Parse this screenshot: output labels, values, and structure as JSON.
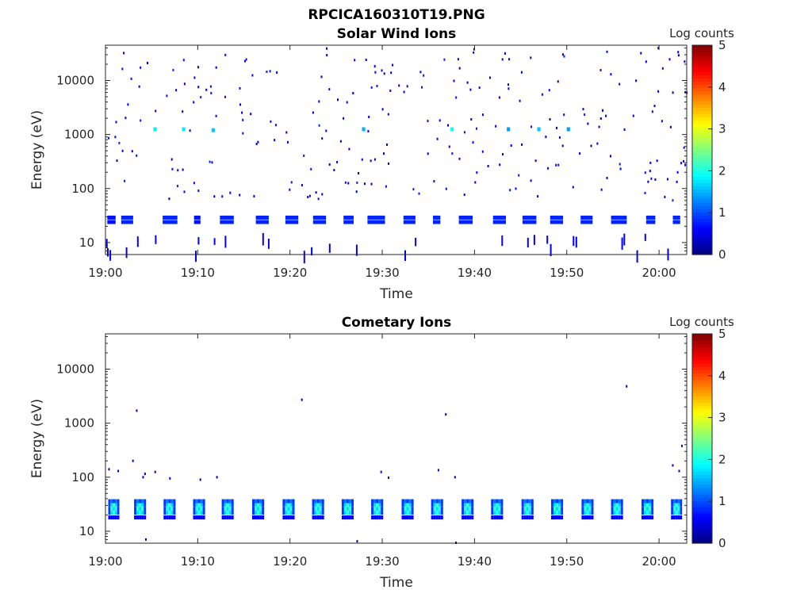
{
  "figure": {
    "title": "RPCICA160310T19.PNG"
  },
  "chart_data": [
    {
      "type": "heatmap",
      "title": "Solar Wind Ions",
      "xlabel": "Time",
      "ylabel": "Energy (eV)",
      "x_ticks": [
        "19:00",
        "19:10",
        "19:20",
        "19:30",
        "19:40",
        "19:50",
        "20:00"
      ],
      "x_range_minutes": [
        0,
        63
      ],
      "y_ticks": [
        "10",
        "100",
        "1000",
        "10000"
      ],
      "y_scale": "log",
      "y_range": [
        6,
        45000
      ],
      "colorbar": {
        "label": "Log counts",
        "range": [
          0,
          5
        ],
        "ticks": [
          "0",
          "1",
          "2",
          "3",
          "4",
          "5"
        ],
        "colormap": "jet"
      },
      "band_dashes": [
        {
          "t": 0.2,
          "dt": 0.9,
          "logc": 0.7
        },
        {
          "t": 1.7,
          "dt": 1.3,
          "logc": 0.8
        },
        {
          "t": 6.2,
          "dt": 1.6,
          "logc": 0.8
        },
        {
          "t": 9.6,
          "dt": 0.7,
          "logc": 0.7
        },
        {
          "t": 12.4,
          "dt": 1.5,
          "logc": 0.8
        },
        {
          "t": 16.3,
          "dt": 1.4,
          "logc": 0.8
        },
        {
          "t": 19.5,
          "dt": 1.4,
          "logc": 0.8
        },
        {
          "t": 22.5,
          "dt": 1.4,
          "logc": 0.8
        },
        {
          "t": 25.8,
          "dt": 1.1,
          "logc": 0.8
        },
        {
          "t": 28.4,
          "dt": 1.9,
          "logc": 0.8
        },
        {
          "t": 32.3,
          "dt": 1.3,
          "logc": 0.8
        },
        {
          "t": 35.5,
          "dt": 0.8,
          "logc": 0.8
        },
        {
          "t": 38.3,
          "dt": 1.5,
          "logc": 0.8
        },
        {
          "t": 42.0,
          "dt": 1.4,
          "logc": 0.8
        },
        {
          "t": 45.2,
          "dt": 1.5,
          "logc": 0.8
        },
        {
          "t": 48.2,
          "dt": 1.4,
          "logc": 0.8
        },
        {
          "t": 51.5,
          "dt": 1.3,
          "logc": 0.8
        },
        {
          "t": 54.8,
          "dt": 1.7,
          "logc": 0.8
        },
        {
          "t": 58.6,
          "dt": 1.0,
          "logc": 0.8
        },
        {
          "t": 61.5,
          "dt": 0.8,
          "logc": 0.8
        }
      ],
      "hot_pixels": [
        {
          "t": 5.2,
          "e": 1250,
          "logc": 1.8
        },
        {
          "t": 8.3,
          "e": 1250,
          "logc": 1.8
        },
        {
          "t": 11.5,
          "e": 1200,
          "logc": 1.6
        },
        {
          "t": 27.8,
          "e": 1250,
          "logc": 1.5
        },
        {
          "t": 37.4,
          "e": 1250,
          "logc": 1.9
        },
        {
          "t": 43.5,
          "e": 1250,
          "logc": 1.4
        },
        {
          "t": 46.8,
          "e": 1250,
          "logc": 1.6
        },
        {
          "t": 50.0,
          "e": 1250,
          "logc": 1.4
        }
      ],
      "random_seed": 7,
      "random_pixel_count": 260,
      "random_pixel_energy_range": [
        60,
        40000
      ]
    },
    {
      "type": "heatmap",
      "title": "Cometary Ions",
      "xlabel": "Time",
      "ylabel": "Energy (eV)",
      "x_ticks": [
        "19:00",
        "19:10",
        "19:20",
        "19:30",
        "19:40",
        "19:50",
        "20:00"
      ],
      "x_range_minutes": [
        0,
        63
      ],
      "y_ticks": [
        "10",
        "100",
        "1000",
        "10000"
      ],
      "y_scale": "log",
      "y_range": [
        6,
        45000
      ],
      "colorbar": {
        "label": "Log counts",
        "range": [
          0,
          5
        ],
        "ticks": [
          "0",
          "1",
          "2",
          "3",
          "4",
          "5"
        ],
        "colormap": "jet"
      },
      "blocks": [
        {
          "t": 0.3,
          "dt": 1.2
        },
        {
          "t": 3.1,
          "dt": 1.3
        },
        {
          "t": 6.3,
          "dt": 1.3
        },
        {
          "t": 9.5,
          "dt": 1.3
        },
        {
          "t": 12.6,
          "dt": 1.3
        },
        {
          "t": 15.9,
          "dt": 1.3
        },
        {
          "t": 19.2,
          "dt": 1.3
        },
        {
          "t": 22.4,
          "dt": 1.3
        },
        {
          "t": 25.6,
          "dt": 1.3
        },
        {
          "t": 28.8,
          "dt": 1.3
        },
        {
          "t": 32.1,
          "dt": 1.3
        },
        {
          "t": 35.3,
          "dt": 1.3
        },
        {
          "t": 38.6,
          "dt": 1.3
        },
        {
          "t": 41.8,
          "dt": 1.3
        },
        {
          "t": 45.1,
          "dt": 1.3
        },
        {
          "t": 48.3,
          "dt": 1.3
        },
        {
          "t": 51.6,
          "dt": 1.3
        },
        {
          "t": 54.8,
          "dt": 1.3
        },
        {
          "t": 58.1,
          "dt": 1.3
        },
        {
          "t": 61.3,
          "dt": 1.2
        }
      ],
      "sparse_pixels": [
        {
          "t": 0.3,
          "e": 140
        },
        {
          "t": 1.3,
          "e": 130
        },
        {
          "t": 2.9,
          "e": 200
        },
        {
          "t": 3.3,
          "e": 1700
        },
        {
          "t": 4.0,
          "e": 100
        },
        {
          "t": 4.2,
          "e": 115
        },
        {
          "t": 5.3,
          "e": 125
        },
        {
          "t": 6.9,
          "e": 95
        },
        {
          "t": 10.2,
          "e": 90
        },
        {
          "t": 12.0,
          "e": 100
        },
        {
          "t": 21.2,
          "e": 2700
        },
        {
          "t": 29.8,
          "e": 125
        },
        {
          "t": 30.6,
          "e": 98
        },
        {
          "t": 36.8,
          "e": 1450
        },
        {
          "t": 36.0,
          "e": 135
        },
        {
          "t": 37.8,
          "e": 100
        },
        {
          "t": 56.4,
          "e": 4800
        },
        {
          "t": 61.4,
          "e": 165
        },
        {
          "t": 62.4,
          "e": 380
        },
        {
          "t": 62.1,
          "e": 130
        },
        {
          "t": 37.9,
          "e": 6.1
        },
        {
          "t": 27.2,
          "e": 6.5
        },
        {
          "t": 4.3,
          "e": 7
        }
      ]
    }
  ]
}
